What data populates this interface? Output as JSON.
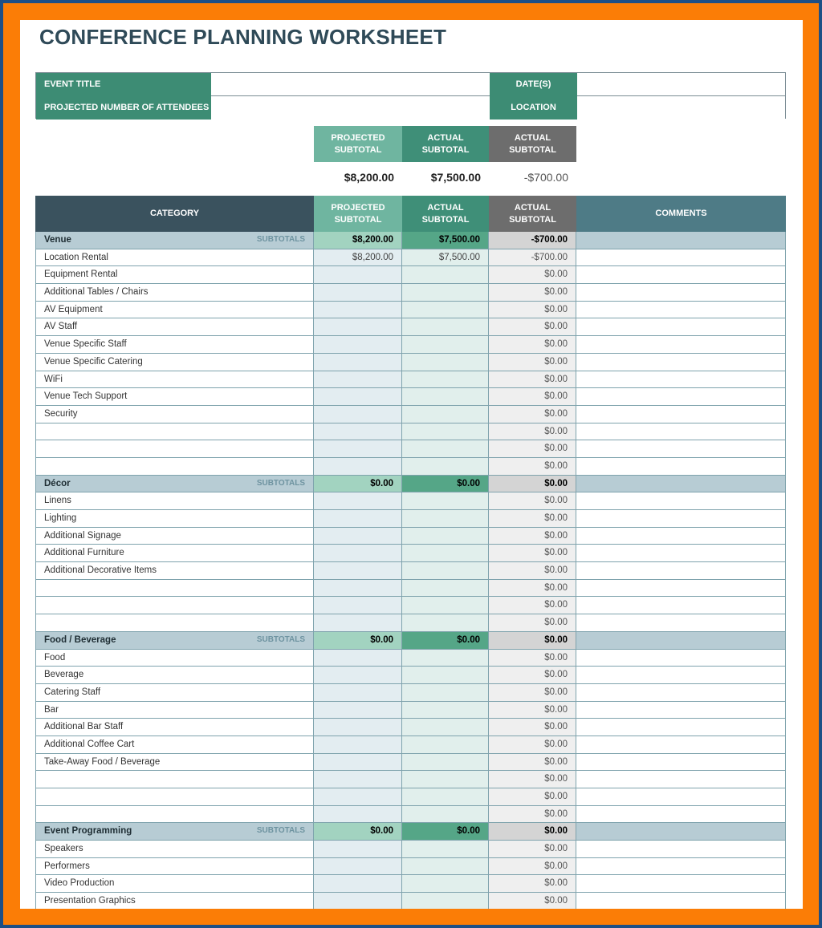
{
  "colors": {
    "frame": "#fb7d06",
    "border": "#1d4f86",
    "header_dark": "#3a525e",
    "green": "#3d8c74",
    "gray": "#6d6d6d"
  },
  "title": "CONFERENCE PLANNING WORKSHEET",
  "info": {
    "event_title": "EVENT TITLE",
    "attendees": "PROJECTED NUMBER OF ATTENDEES",
    "dates": "DATE(S)",
    "location": "LOCATION"
  },
  "summary": {
    "projected_label": "PROJECTED SUBTOTAL",
    "actual_label": "ACTUAL SUBTOTAL",
    "diff_label": "ACTUAL SUBTOTAL",
    "projected": "$8,200.00",
    "actual": "$7,500.00",
    "diff": "-$700.00"
  },
  "table": {
    "headers": {
      "category": "CATEGORY",
      "projected": "PROJECTED SUBTOTAL",
      "actual": "ACTUAL SUBTOTAL",
      "diff": "ACTUAL SUBTOTAL",
      "comments": "COMMENTS"
    },
    "subtotals_label": "SUBTOTALS",
    "sections": [
      {
        "name": "Venue",
        "projected": "$8,200.00",
        "actual": "$7,500.00",
        "diff": "-$700.00",
        "items": [
          {
            "label": "Location Rental",
            "projected": "$8,200.00",
            "actual": "$7,500.00",
            "diff": "-$700.00"
          },
          {
            "label": "Equipment Rental",
            "diff": "$0.00"
          },
          {
            "label": "Additional Tables / Chairs",
            "diff": "$0.00"
          },
          {
            "label": "AV Equipment",
            "diff": "$0.00"
          },
          {
            "label": "AV Staff",
            "diff": "$0.00"
          },
          {
            "label": "Venue Specific Staff",
            "diff": "$0.00"
          },
          {
            "label": "Venue Specific Catering",
            "diff": "$0.00"
          },
          {
            "label": "WiFi",
            "diff": "$0.00"
          },
          {
            "label": "Venue Tech Support",
            "diff": "$0.00"
          },
          {
            "label": "Security",
            "diff": "$0.00"
          },
          {
            "label": "",
            "diff": "$0.00"
          },
          {
            "label": "",
            "diff": "$0.00"
          },
          {
            "label": "",
            "diff": "$0.00"
          }
        ]
      },
      {
        "name": "Décor",
        "projected": "$0.00",
        "actual": "$0.00",
        "diff": "$0.00",
        "items": [
          {
            "label": "Linens",
            "diff": "$0.00"
          },
          {
            "label": "Lighting",
            "diff": "$0.00"
          },
          {
            "label": "Additional Signage",
            "diff": "$0.00"
          },
          {
            "label": "Additional Furniture",
            "diff": "$0.00"
          },
          {
            "label": "Additional Decorative Items",
            "diff": "$0.00"
          },
          {
            "label": "",
            "diff": "$0.00"
          },
          {
            "label": "",
            "diff": "$0.00"
          },
          {
            "label": "",
            "diff": "$0.00"
          }
        ]
      },
      {
        "name": "Food / Beverage",
        "projected": "$0.00",
        "actual": "$0.00",
        "diff": "$0.00",
        "items": [
          {
            "label": "Food",
            "diff": "$0.00"
          },
          {
            "label": "Beverage",
            "diff": "$0.00"
          },
          {
            "label": "Catering Staff",
            "diff": "$0.00"
          },
          {
            "label": "Bar",
            "diff": "$0.00"
          },
          {
            "label": "Additional Bar Staff",
            "diff": "$0.00"
          },
          {
            "label": "Additional Coffee Cart",
            "diff": "$0.00"
          },
          {
            "label": "Take-Away Food / Beverage",
            "diff": "$0.00"
          },
          {
            "label": "",
            "diff": "$0.00"
          },
          {
            "label": "",
            "diff": "$0.00"
          },
          {
            "label": "",
            "diff": "$0.00"
          }
        ]
      },
      {
        "name": "Event Programming",
        "projected": "$0.00",
        "actual": "$0.00",
        "diff": "$0.00",
        "items": [
          {
            "label": "Speakers",
            "diff": "$0.00"
          },
          {
            "label": "Performers",
            "diff": "$0.00"
          },
          {
            "label": "Video Production",
            "diff": "$0.00"
          },
          {
            "label": "Presentation Graphics",
            "diff": "$0.00"
          }
        ]
      }
    ]
  }
}
